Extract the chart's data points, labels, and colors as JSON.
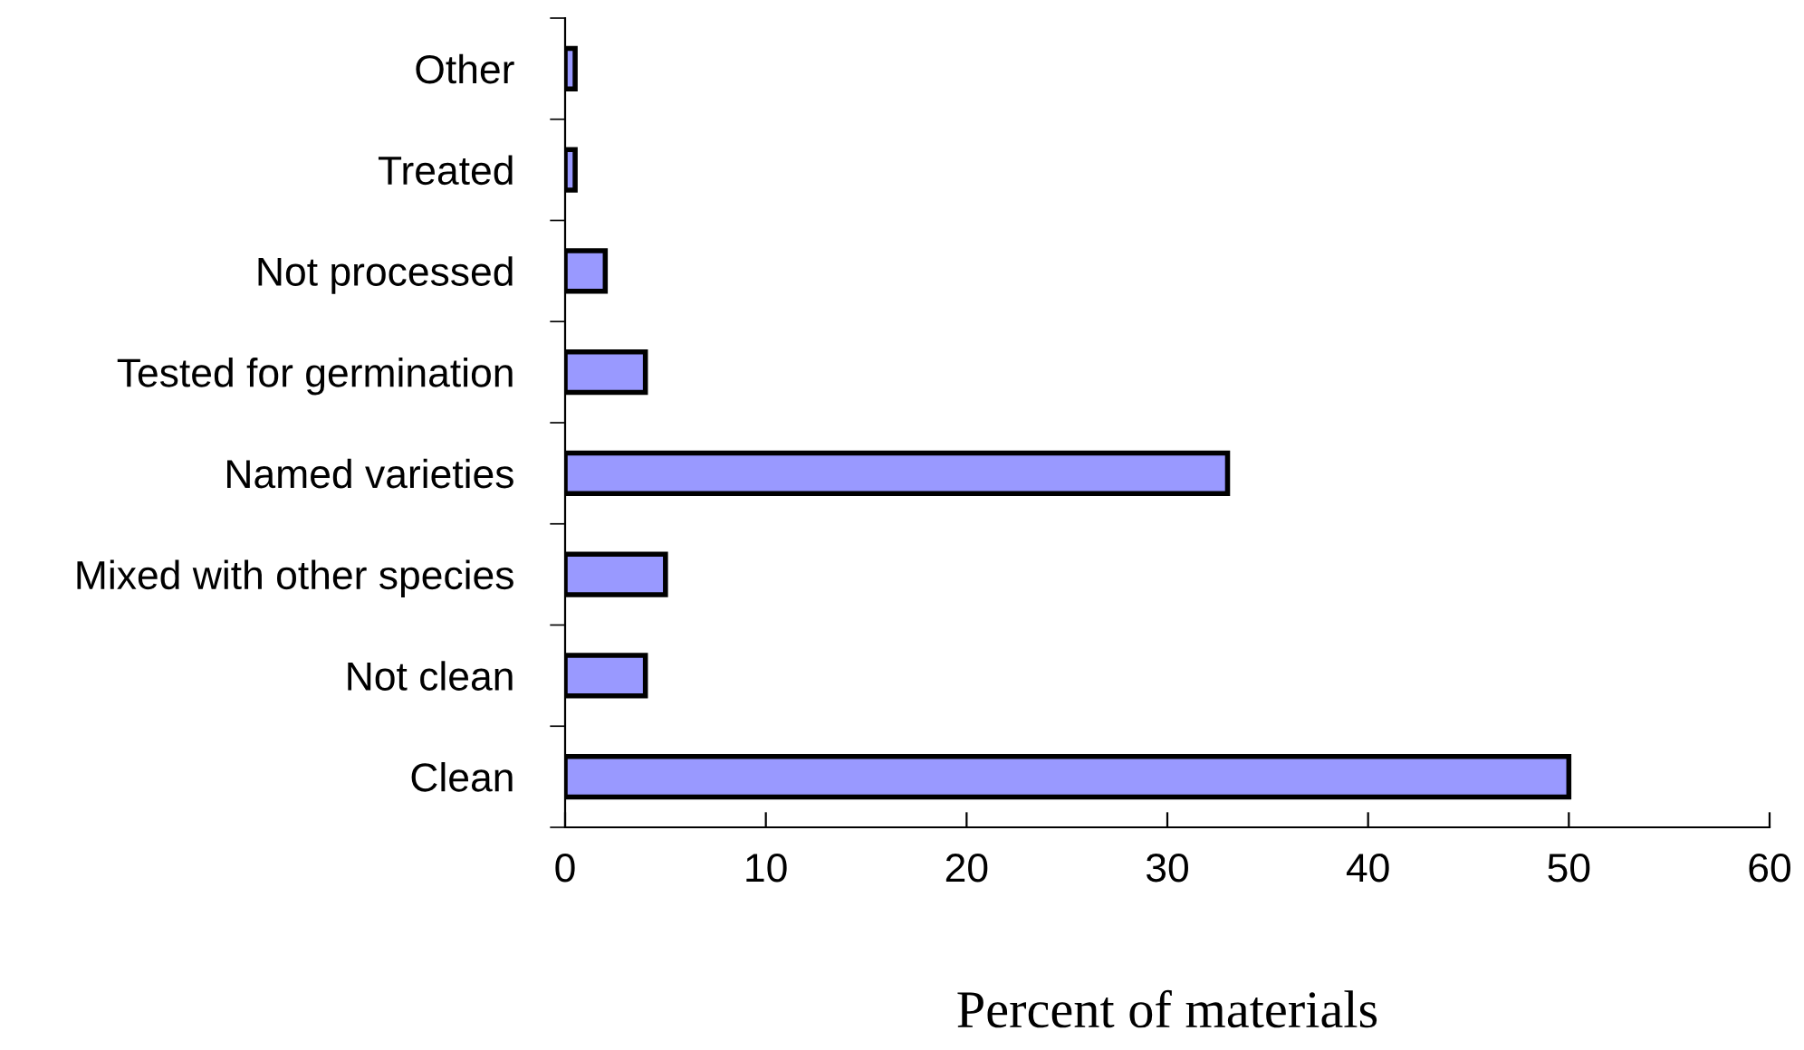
{
  "chart_data": {
    "type": "bar",
    "orientation": "horizontal",
    "xlabel": "Percent of materials",
    "categories": [
      "Other",
      "Treated",
      "Not processed",
      "Tested for germination",
      "Named varieties",
      "Mixed with other species",
      "Not clean",
      "Clean"
    ],
    "values": [
      0.5,
      0.5,
      2,
      4,
      33,
      5,
      4,
      50
    ],
    "color": "#9999ff",
    "xlim": [
      0,
      60
    ],
    "xticks": [
      0,
      10,
      20,
      30,
      40,
      50,
      60
    ],
    "grid": false,
    "legend": false
  }
}
